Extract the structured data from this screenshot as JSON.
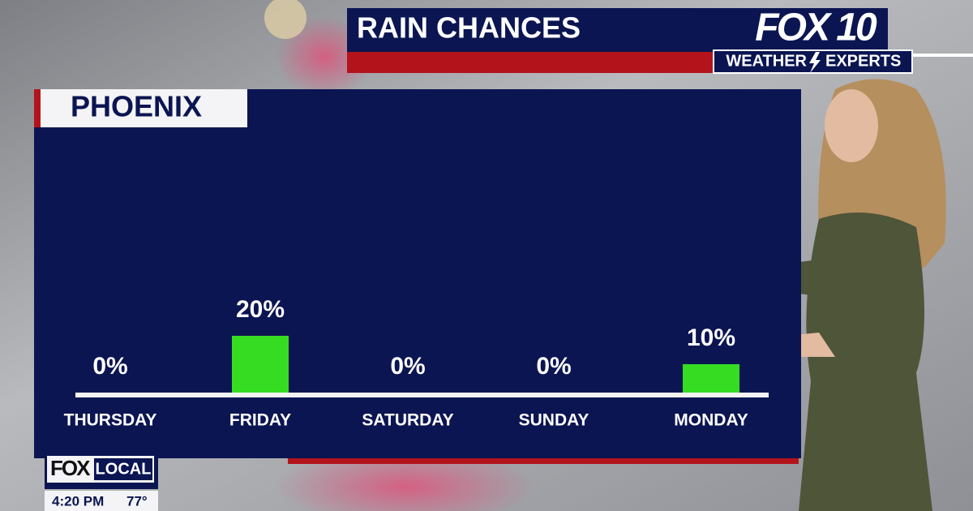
{
  "chart_data": {
    "type": "bar",
    "title": "RAIN CHANCES",
    "subtitle": "PHOENIX",
    "categories": [
      "THURSDAY",
      "FRIDAY",
      "SATURDAY",
      "SUNDAY",
      "MONDAY"
    ],
    "values": [
      0,
      20,
      0,
      0,
      10
    ],
    "value_labels": [
      "0%",
      "20%",
      "0%",
      "0%",
      "10%"
    ],
    "color": "#35dc22"
  },
  "branding": {
    "logo": "FOX 10",
    "tagline_left": "WEATHER",
    "tagline_right": "EXPERTS"
  },
  "ticker": {
    "logo_fox": "FOX",
    "logo_local": "LOCAL",
    "time": "4:20 PM",
    "temperature": "77°"
  }
}
